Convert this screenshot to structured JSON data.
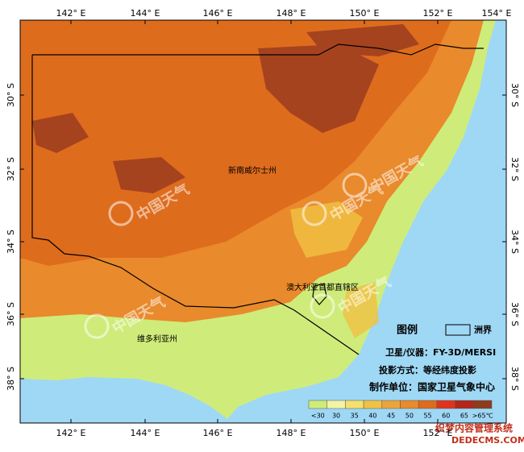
{
  "map": {
    "lon_labels": [
      "142° E",
      "144° E",
      "146° E",
      "148° E",
      "150° E",
      "152° E",
      "154° E"
    ],
    "lat_labels": [
      "30° S",
      "32° S",
      "34° S",
      "36° S",
      "38° S"
    ],
    "regions": [
      "新南威尔士州",
      "澳大利亚首都直辖区",
      "维多利亚州"
    ]
  },
  "legend": {
    "title": "图例",
    "boundary": "洲界",
    "classes": [
      {
        "label": "<30",
        "color": "#cfec7a"
      },
      {
        "label": "30",
        "color": "#f3f3a4"
      },
      {
        "label": "35",
        "color": "#f4e06c"
      },
      {
        "label": "40",
        "color": "#f0c243"
      },
      {
        "label": "45",
        "color": "#eca43a"
      },
      {
        "label": "50",
        "color": "#e98a2c"
      },
      {
        "label": "55",
        "color": "#de6c1d"
      },
      {
        "label": "60",
        "color": "#e0331e"
      },
      {
        "label": "65",
        "color": "#b3261a"
      },
      {
        "label": ">65℃",
        "color": "#8e3b1e"
      }
    ]
  },
  "info": {
    "satellite": "卫星/仪器：FY-3D/MERSI",
    "projection": "投影方式：等经纬度投影",
    "producer": "制作单位：国家卫星气象中心"
  },
  "watermark": "中国天气",
  "footer": {
    "line1": "织梦内容管理系统",
    "line2": "DEDECMS.COM"
  }
}
